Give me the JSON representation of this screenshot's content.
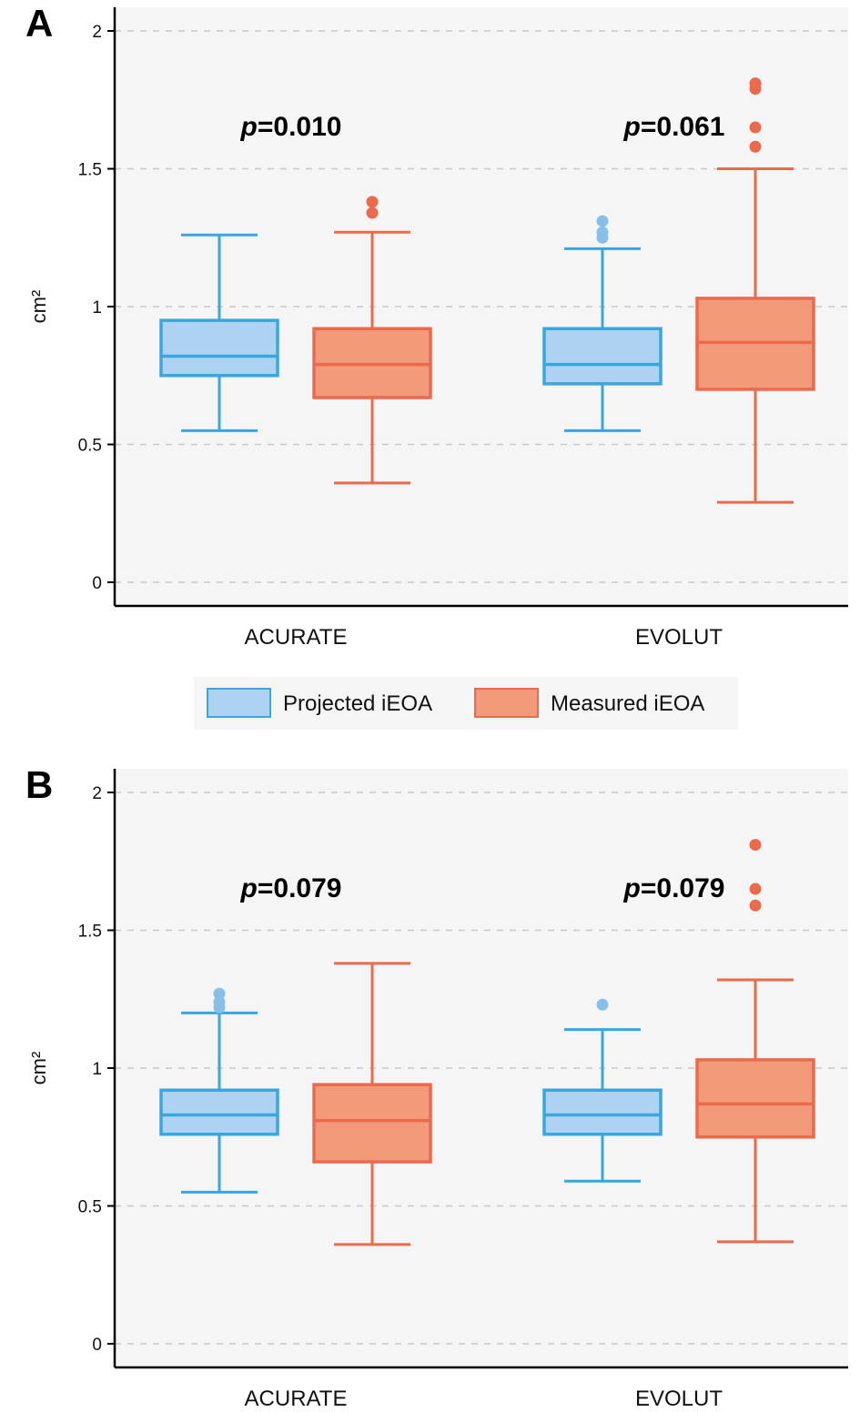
{
  "colors": {
    "projected_fill": "#aed3f2",
    "projected_stroke": "#3ba6dd",
    "projected_outlier": "#88bfe9",
    "measured_fill": "#f29a7a",
    "measured_stroke": "#eb6a4c",
    "measured_outlier": "#eb6a4c",
    "plot_bg": "#f5f5f5",
    "grid": "#c8c8c8"
  },
  "legend": {
    "items": [
      {
        "key": "projected",
        "label": "Projected iEOA"
      },
      {
        "key": "measured",
        "label": "Measured iEOA"
      }
    ]
  },
  "chart_data": [
    {
      "type": "box",
      "panel": "A",
      "ylabel": "cm²",
      "ylim": [
        0,
        2
      ],
      "yticks": [
        "0",
        "0.5",
        "1",
        "1.5",
        "2"
      ],
      "grid": true,
      "categories": [
        "ACURATE",
        "EVOLUT"
      ],
      "pvalues": [
        "0.010",
        "0.061"
      ],
      "series": [
        {
          "name": "Projected iEOA",
          "key": "projected",
          "boxes": [
            {
              "whisker_low": 0.55,
              "q1": 0.75,
              "median": 0.82,
              "q3": 0.95,
              "whisker_high": 1.26,
              "outliers": []
            },
            {
              "whisker_low": 0.55,
              "q1": 0.72,
              "median": 0.79,
              "q3": 0.92,
              "whisker_high": 1.21,
              "outliers": [
                1.25,
                1.27,
                1.31
              ]
            }
          ]
        },
        {
          "name": "Measured iEOA",
          "key": "measured",
          "boxes": [
            {
              "whisker_low": 0.36,
              "q1": 0.67,
              "median": 0.79,
              "q3": 0.92,
              "whisker_high": 1.27,
              "outliers": [
                1.34,
                1.38
              ]
            },
            {
              "whisker_low": 0.29,
              "q1": 0.7,
              "median": 0.87,
              "q3": 1.03,
              "whisker_high": 1.5,
              "outliers": [
                1.58,
                1.65,
                1.79,
                1.81
              ]
            }
          ]
        }
      ]
    },
    {
      "type": "box",
      "panel": "B",
      "ylabel": "cm²",
      "ylim": [
        0,
        2
      ],
      "yticks": [
        "0",
        "0.5",
        "1",
        "1.5",
        "2"
      ],
      "grid": true,
      "categories": [
        "ACURATE",
        "EVOLUT"
      ],
      "pvalues": [
        "0.079",
        "0.079"
      ],
      "series": [
        {
          "name": "Projected iEOA",
          "key": "projected",
          "boxes": [
            {
              "whisker_low": 0.55,
              "q1": 0.76,
              "median": 0.83,
              "q3": 0.92,
              "whisker_high": 1.2,
              "outliers": [
                1.22,
                1.24,
                1.27
              ]
            },
            {
              "whisker_low": 0.59,
              "q1": 0.76,
              "median": 0.83,
              "q3": 0.92,
              "whisker_high": 1.14,
              "outliers": [
                1.23
              ]
            }
          ]
        },
        {
          "name": "Measured iEOA",
          "key": "measured",
          "boxes": [
            {
              "whisker_low": 0.36,
              "q1": 0.66,
              "median": 0.81,
              "q3": 0.94,
              "whisker_high": 1.38,
              "outliers": []
            },
            {
              "whisker_low": 0.37,
              "q1": 0.75,
              "median": 0.87,
              "q3": 1.03,
              "whisker_high": 1.32,
              "outliers": [
                1.59,
                1.65,
                1.81
              ]
            }
          ]
        }
      ]
    }
  ]
}
